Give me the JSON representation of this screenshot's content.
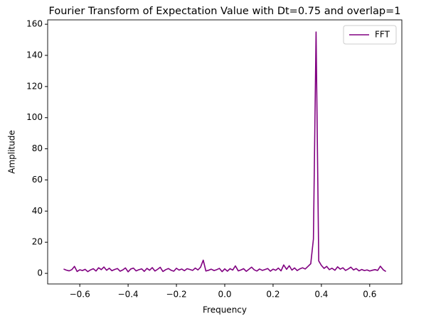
{
  "chart_data": {
    "type": "line",
    "title": "Fourier Transform of Expectation Value with Dt=0.75 and overlap=1",
    "x_label": "Frequency",
    "y_label": "Amplitude",
    "x": [
      -0.667,
      -0.656,
      -0.644,
      -0.633,
      -0.622,
      -0.611,
      -0.6,
      -0.589,
      -0.578,
      -0.567,
      -0.556,
      -0.544,
      -0.533,
      -0.522,
      -0.511,
      -0.5,
      -0.489,
      -0.478,
      -0.467,
      -0.456,
      -0.444,
      -0.433,
      -0.422,
      -0.411,
      -0.4,
      -0.389,
      -0.378,
      -0.367,
      -0.356,
      -0.344,
      -0.333,
      -0.322,
      -0.311,
      -0.3,
      -0.289,
      -0.278,
      -0.267,
      -0.256,
      -0.244,
      -0.233,
      -0.222,
      -0.211,
      -0.2,
      -0.189,
      -0.178,
      -0.167,
      -0.156,
      -0.144,
      -0.133,
      -0.122,
      -0.111,
      -0.1,
      -0.089,
      -0.078,
      -0.067,
      -0.056,
      -0.044,
      -0.033,
      -0.022,
      -0.011,
      0.0,
      0.011,
      0.022,
      0.033,
      0.044,
      0.056,
      0.067,
      0.078,
      0.089,
      0.1,
      0.111,
      0.122,
      0.133,
      0.144,
      0.156,
      0.167,
      0.178,
      0.189,
      0.2,
      0.211,
      0.222,
      0.233,
      0.244,
      0.256,
      0.267,
      0.278,
      0.289,
      0.3,
      0.311,
      0.322,
      0.333,
      0.344,
      0.356,
      0.367,
      0.378,
      0.389,
      0.4,
      0.411,
      0.422,
      0.433,
      0.444,
      0.456,
      0.467,
      0.478,
      0.489,
      0.5,
      0.511,
      0.522,
      0.533,
      0.544,
      0.556,
      0.567,
      0.578,
      0.589,
      0.6,
      0.611,
      0.622,
      0.633,
      0.644,
      0.656,
      0.667
    ],
    "series": [
      {
        "name": "FFT",
        "color": "#800080",
        "values": [
          2.8,
          2.1,
          1.6,
          2.4,
          4.5,
          1.2,
          2.3,
          1.8,
          2.6,
          1.1,
          2.2,
          3.0,
          1.5,
          3.6,
          2.4,
          4.1,
          2.0,
          3.3,
          1.7,
          2.5,
          3.1,
          1.4,
          2.2,
          3.5,
          1.0,
          2.8,
          3.4,
          1.6,
          2.3,
          2.9,
          1.3,
          3.2,
          2.0,
          3.7,
          1.5,
          2.6,
          3.9,
          1.2,
          2.4,
          3.1,
          2.0,
          1.4,
          3.3,
          2.1,
          2.8,
          1.7,
          3.0,
          2.5,
          1.9,
          3.4,
          2.2,
          4.0,
          8.5,
          1.5,
          2.0,
          2.7,
          1.8,
          2.4,
          3.2,
          1.1,
          2.9,
          1.4,
          3.0,
          2.1,
          4.8,
          1.6,
          2.2,
          3.0,
          1.3,
          2.6,
          4.0,
          2.3,
          1.5,
          2.8,
          1.9,
          2.5,
          3.1,
          1.4,
          2.7,
          2.0,
          3.4,
          1.6,
          5.4,
          2.6,
          4.9,
          2.1,
          3.5,
          1.8,
          2.9,
          3.6,
          2.8,
          4.4,
          6.2,
          22.0,
          155.0,
          8.0,
          5.1,
          3.2,
          4.5,
          2.4,
          3.3,
          2.0,
          4.2,
          2.7,
          3.6,
          1.9,
          2.8,
          4.0,
          2.2,
          3.1,
          1.6,
          2.5,
          1.8,
          2.2,
          1.5,
          2.0,
          2.4,
          1.9,
          4.6,
          2.3,
          1.2
        ]
      }
    ],
    "xlim": [
      -0.733,
      0.733
    ],
    "ylim": [
      -6.8,
      162.8
    ],
    "xticks": [
      {
        "value": -0.6,
        "label": "−0.6"
      },
      {
        "value": -0.4,
        "label": "−0.4"
      },
      {
        "value": -0.2,
        "label": "−0.2"
      },
      {
        "value": 0,
        "label": "0.0"
      },
      {
        "value": 0.2,
        "label": "0.2"
      },
      {
        "value": 0.4,
        "label": "0.4"
      },
      {
        "value": 0.6,
        "label": "0.6"
      }
    ],
    "yticks": [
      0,
      20,
      40,
      60,
      80,
      100,
      120,
      140,
      160
    ],
    "legend": "upper right",
    "grid": false
  }
}
